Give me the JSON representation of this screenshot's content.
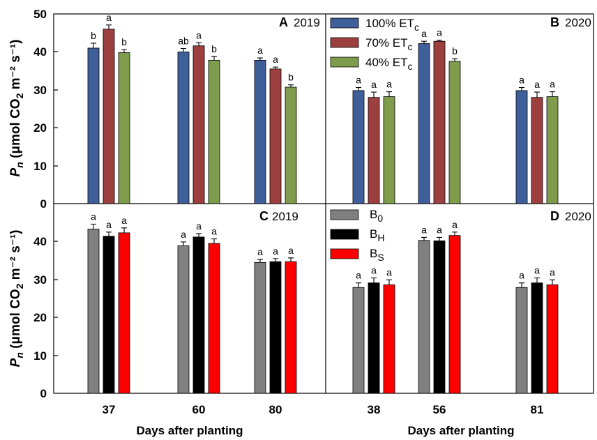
{
  "colors": {
    "et100": "#3f5f9a",
    "et70": "#9e3f3f",
    "et40": "#7e9c4b",
    "b0": "#808080",
    "bh": "#000000",
    "bs": "#ff0000"
  },
  "axes": {
    "ylabel_main": "P",
    "ylabel_sub": "n",
    "ylabel_unit_pre": " (μmol CO",
    "ylabel_unit_sub": "2",
    "ylabel_unit_post": " m⁻² s⁻¹)",
    "xlabel_left": "Days after planting",
    "xlabel_right": "Days after planting",
    "y_ticks": [
      "0",
      "10",
      "20",
      "30",
      "40",
      "50"
    ],
    "y_ticks_lower": [
      "0",
      "10",
      "20",
      "30",
      "40"
    ]
  },
  "legend_top": {
    "entries": [
      {
        "base": "100% ET",
        "sub": "c",
        "color_key": "et100"
      },
      {
        "base": "70% ET",
        "sub": "c",
        "color_key": "et70"
      },
      {
        "base": "40% ET",
        "sub": "c",
        "color_key": "et40"
      }
    ]
  },
  "legend_bottom": {
    "entries": [
      {
        "base": "B",
        "sub": "0",
        "color_key": "b0"
      },
      {
        "base": "B",
        "sub": "H",
        "color_key": "bh"
      },
      {
        "base": "B",
        "sub": "S",
        "color_key": "bs"
      }
    ]
  },
  "chart_data": [
    {
      "panel": "A",
      "year": "2019",
      "type": "bar",
      "categories": [
        "37",
        "60",
        "80"
      ],
      "ylim": [
        0,
        50
      ],
      "series": [
        {
          "name": "100% ETc",
          "color_key": "et100",
          "values": [
            41.0,
            40.0,
            37.8
          ],
          "errors": [
            1.3,
            0.9,
            0.6
          ],
          "letters": [
            "b",
            "ab",
            "a"
          ]
        },
        {
          "name": "70% ETc",
          "color_key": "et70",
          "values": [
            46.0,
            41.6,
            35.5
          ],
          "errors": [
            1.1,
            0.8,
            0.5
          ],
          "letters": [
            "a",
            "a",
            "a"
          ]
        },
        {
          "name": "40% ETc",
          "color_key": "et40",
          "values": [
            39.8,
            37.8,
            30.7
          ],
          "errors": [
            0.8,
            1.0,
            0.6
          ],
          "letters": [
            "b",
            "b",
            "b"
          ]
        }
      ]
    },
    {
      "panel": "B",
      "year": "2020",
      "type": "bar",
      "categories": [
        "38",
        "56",
        "81"
      ],
      "ylim": [
        0,
        50
      ],
      "series": [
        {
          "name": "100% ETc",
          "color_key": "et100",
          "values": [
            29.8,
            42.2,
            29.8
          ],
          "errors": [
            0.8,
            0.6,
            0.8
          ],
          "letters": [
            "a",
            "a",
            "a"
          ]
        },
        {
          "name": "70% ETc",
          "color_key": "et70",
          "values": [
            28.0,
            42.8,
            28.0
          ],
          "errors": [
            1.4,
            0.3,
            1.4
          ],
          "letters": [
            "a",
            "a",
            "a"
          ]
        },
        {
          "name": "40% ETc",
          "color_key": "et40",
          "values": [
            28.2,
            37.5,
            28.2
          ],
          "errors": [
            1.3,
            0.7,
            1.3
          ],
          "letters": [
            "a",
            "b",
            "a"
          ]
        }
      ]
    },
    {
      "panel": "C",
      "year": "2019",
      "type": "bar",
      "categories": [
        "37",
        "60",
        "80"
      ],
      "ylim": [
        0,
        50
      ],
      "series": [
        {
          "name": "B0",
          "color_key": "b0",
          "values": [
            43.3,
            38.9,
            34.5
          ],
          "errors": [
            1.3,
            1.0,
            0.8
          ],
          "letters": [
            "a",
            "a",
            "a"
          ]
        },
        {
          "name": "BH",
          "color_key": "bh",
          "values": [
            41.4,
            41.2,
            34.7
          ],
          "errors": [
            1.1,
            0.9,
            0.8
          ],
          "letters": [
            "a",
            "a",
            "a"
          ]
        },
        {
          "name": "BS",
          "color_key": "bs",
          "values": [
            42.3,
            39.5,
            34.7
          ],
          "errors": [
            1.3,
            1.2,
            1.0
          ],
          "letters": [
            "a",
            "a",
            "a"
          ]
        }
      ]
    },
    {
      "panel": "D",
      "year": "2020",
      "type": "bar",
      "categories": [
        "38",
        "56",
        "81"
      ],
      "ylim": [
        0,
        50
      ],
      "series": [
        {
          "name": "B0",
          "color_key": "b0",
          "values": [
            27.9,
            40.3,
            27.9
          ],
          "errors": [
            1.2,
            0.8,
            1.2
          ],
          "letters": [
            "a",
            "a",
            "a"
          ]
        },
        {
          "name": "BH",
          "color_key": "bh",
          "values": [
            29.1,
            40.2,
            29.1
          ],
          "errors": [
            1.3,
            0.9,
            1.3
          ],
          "letters": [
            "a",
            "a",
            "a"
          ]
        },
        {
          "name": "BS",
          "color_key": "bs",
          "values": [
            28.6,
            41.6,
            28.6
          ],
          "errors": [
            1.3,
            0.9,
            1.3
          ],
          "letters": [
            "a",
            "a",
            "a"
          ]
        }
      ]
    }
  ]
}
